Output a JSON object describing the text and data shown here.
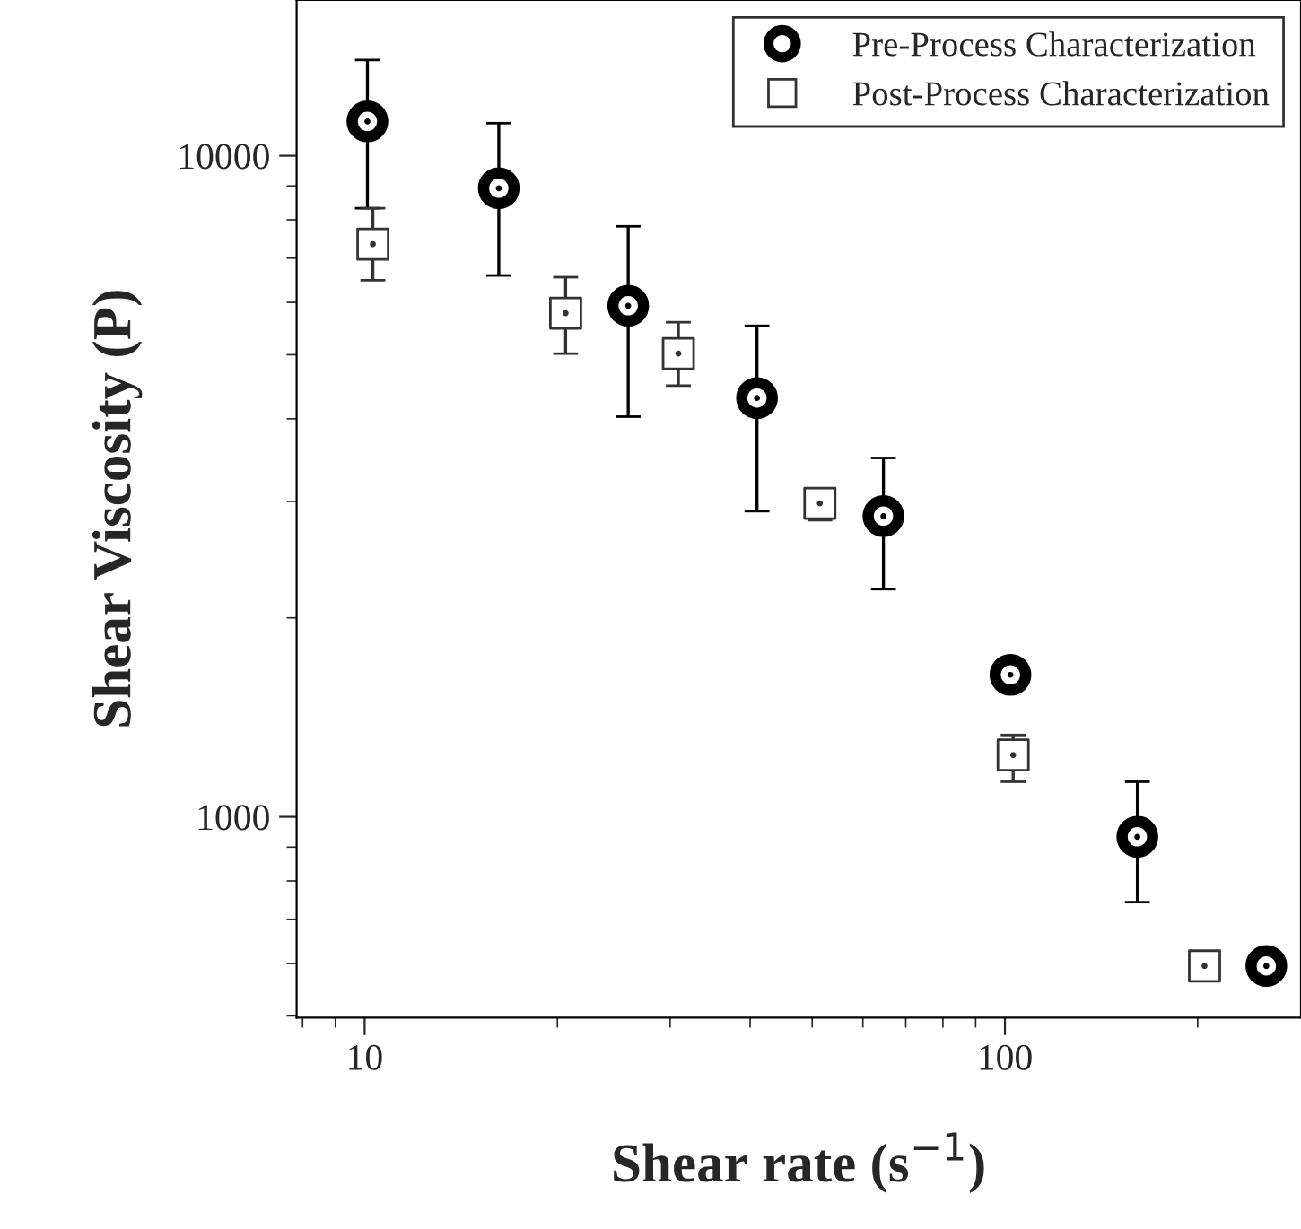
{
  "chart_data": {
    "type": "scatter",
    "xlabel": "Shear rate (s$^{−1}$)",
    "ylabel": "Shear Viscosity (P)",
    "log": "xy",
    "grid": false,
    "legend": "top right",
    "xlim": [
      7.83,
      290
    ],
    "ylim": [
      497,
      17200
    ],
    "xticks": [
      10,
      100
    ],
    "yticks": [
      1000,
      10000
    ],
    "series": [
      {
        "name": "Pre-Process Characterization",
        "color": "#000000",
        "marker": "circle",
        "x": [
          10.1,
          16.2,
          25.8,
          41,
          64.6,
          102,
          161,
          256
        ],
        "values": [
          11270,
          8930,
          5930,
          4300,
          2850,
          1640,
          933,
          595
        ],
        "errors": [
          [
            8330,
            13960
          ],
          [
            6590,
            11200
          ],
          [
            4030,
            7820
          ],
          [
            2900,
            5530
          ],
          [
            2210,
            3490
          ],
          null,
          [
            743,
            1130
          ],
          null
        ]
      },
      {
        "name": "Post-Process Characterization",
        "color": "#333333",
        "marker": "square",
        "x": [
          10.3,
          20.6,
          30.9,
          51.4,
          103,
          205
        ],
        "values": [
          7350,
          5780,
          5020,
          2980,
          1240,
          595
        ],
        "errors": [
          [
            6480,
            8330
          ],
          [
            5020,
            6550
          ],
          [
            4490,
            5600
          ],
          [
            2810,
            3130
          ],
          [
            1130,
            1330
          ],
          null
        ]
      }
    ]
  }
}
